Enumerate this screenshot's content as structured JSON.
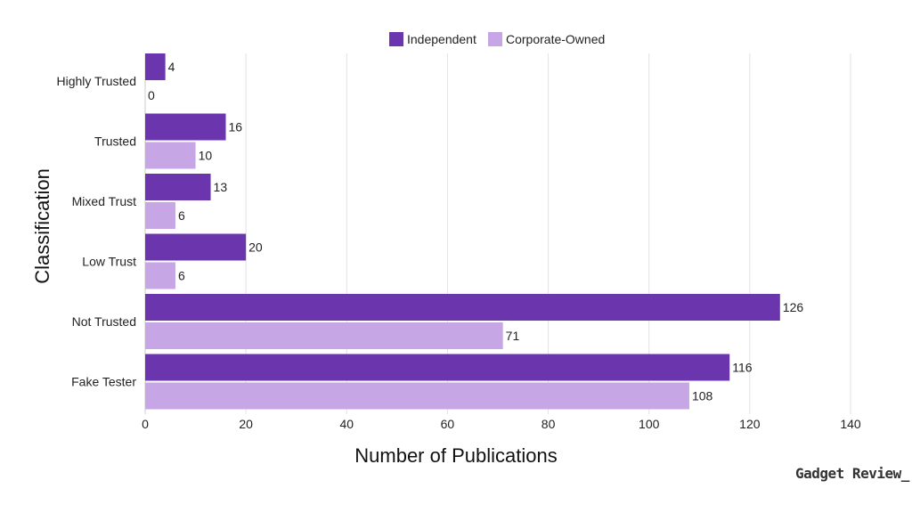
{
  "chart_data": {
    "type": "bar",
    "orientation": "horizontal",
    "categories": [
      "Highly Trusted",
      "Trusted",
      "Mixed Trust",
      "Low Trust",
      "Not Trusted",
      "Fake Tester"
    ],
    "series": [
      {
        "name": "Independent",
        "values": [
          4,
          16,
          13,
          20,
          126,
          116
        ],
        "color": "#6a35ad"
      },
      {
        "name": "Corporate-Owned",
        "values": [
          0,
          10,
          6,
          6,
          71,
          108
        ],
        "color": "#c7a6e5"
      }
    ],
    "xlabel": "Number of Publications",
    "ylabel": "Classification",
    "xlim": [
      0,
      140
    ],
    "xticks": [
      0,
      20,
      40,
      60,
      80,
      100,
      120,
      140
    ],
    "grid": true,
    "legend_position": "top-center",
    "data_labels": true
  },
  "brand": {
    "text": "Gadget Review_"
  }
}
